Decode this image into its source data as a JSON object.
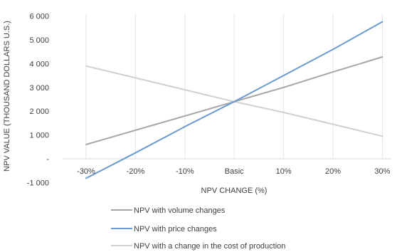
{
  "chart_data": {
    "type": "line",
    "title": "",
    "xlabel": "NPV CHANGE (%)",
    "ylabel": "NPV VALUE (THOUSAND DOLLARS U.S.)",
    "categories": [
      "-30%",
      "-20%",
      "-10%",
      "Basic",
      "10%",
      "20%",
      "30%"
    ],
    "y_ticks": [
      -1000,
      0,
      1000,
      2000,
      3000,
      4000,
      5000,
      6000
    ],
    "y_tick_labels": [
      "-1 000",
      "-",
      "1 000",
      "2 000",
      "3 000",
      "4 000",
      "5 000",
      "6 000"
    ],
    "ylim": [
      -1000,
      6000
    ],
    "grid": "vertical",
    "legend_position": "bottom",
    "series": [
      {
        "name": "NPV with volume changes",
        "color": "#a5a5a5",
        "values": [
          600,
          1200,
          1800,
          2400,
          3000,
          3650,
          4280
        ]
      },
      {
        "name": "NPV with price changes",
        "color": "#6b9bd0",
        "values": [
          -820,
          250,
          1350,
          2400,
          3500,
          4600,
          5760
        ]
      },
      {
        "name": "NPV with a change in the cost of production",
        "color": "#d0d0d0",
        "values": [
          3900,
          3400,
          2900,
          2400,
          1950,
          1450,
          950
        ]
      }
    ]
  }
}
